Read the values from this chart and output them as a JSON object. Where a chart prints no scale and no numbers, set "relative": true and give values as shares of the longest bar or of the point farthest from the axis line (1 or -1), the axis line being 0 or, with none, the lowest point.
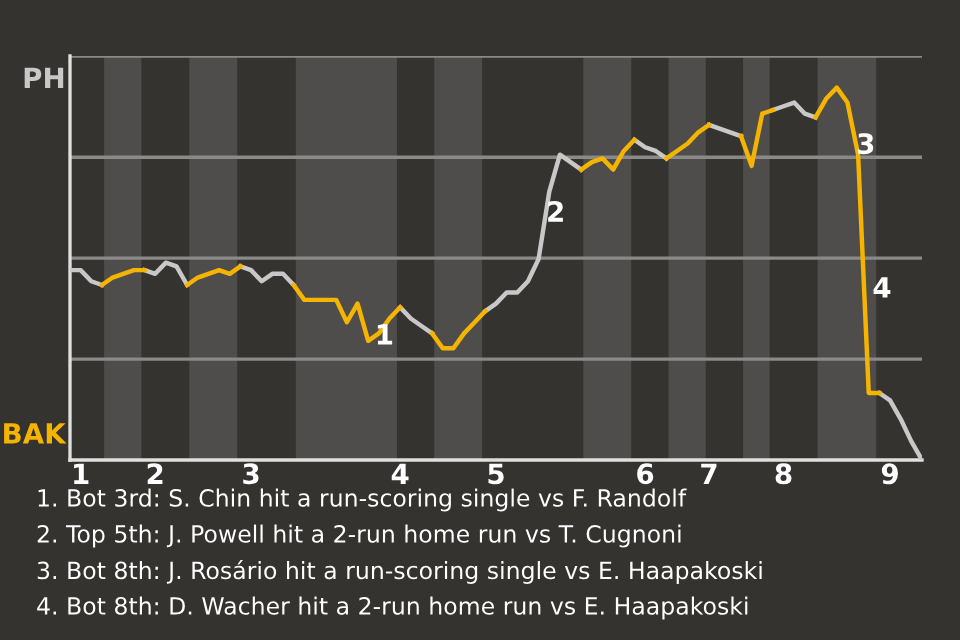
{
  "chart_data": {
    "type": "line",
    "relative": true,
    "categories": [
      null,
      "1",
      null,
      null,
      null,
      null,
      null,
      null,
      "2",
      null,
      null,
      null,
      null,
      null,
      null,
      null,
      null,
      "3",
      null,
      null,
      null,
      null,
      null,
      null,
      null,
      null,
      null,
      null,
      null,
      null,
      null,
      "4",
      null,
      null,
      null,
      null,
      null,
      null,
      null,
      null,
      "5",
      null,
      null,
      null,
      null,
      null,
      null,
      null,
      null,
      null,
      null,
      null,
      null,
      null,
      "6",
      null,
      null,
      null,
      null,
      null,
      "7",
      null,
      null,
      null,
      null,
      null,
      null,
      "8",
      null,
      null,
      null,
      null,
      null,
      null,
      null,
      null,
      null,
      "9",
      null,
      null,
      null
    ],
    "legend": false,
    "marker": "none",
    "line_style": "solid",
    "ref_lines": [
      {
        "axis": "y",
        "value": 0.271,
        "label": null,
        "color": "#8a8a88"
      },
      {
        "axis": "y",
        "value": 0.542,
        "label": null,
        "color": "#8a8a88"
      },
      {
        "axis": "y",
        "value": 0.813,
        "label": null,
        "color": "#8a8a88"
      },
      {
        "axis": "y",
        "value": 1.085,
        "label": null,
        "color": "#8a8a88"
      }
    ],
    "series": [
      {
        "color": "#c8c8c8",
        "values": [
          0.51,
          0.51,
          0.48,
          0.47,
          null,
          null,
          null,
          0.51,
          0.5,
          0.53,
          0.52,
          0.47,
          null,
          null,
          null,
          null,
          0.52,
          0.51,
          0.48,
          0.5,
          0.5,
          0.47,
          null,
          null,
          null,
          null,
          null,
          null,
          null,
          null,
          null,
          0.41,
          0.38,
          0.36,
          0.34,
          null,
          null,
          null,
          null,
          0.4,
          0.42,
          0.45,
          0.45,
          0.48,
          0.54,
          0.72,
          0.82,
          0.8,
          0.78,
          null,
          null,
          null,
          null,
          0.86,
          0.84,
          0.83,
          0.81,
          null,
          null,
          null,
          0.9,
          0.89,
          0.88,
          0.87,
          null,
          null,
          0.94,
          0.95,
          0.96,
          0.93,
          0.92,
          null,
          null,
          null,
          null,
          null,
          0.18,
          0.16,
          0.11,
          0.05,
          0
        ]
      },
      {
        "color": "#f5b400",
        "values": [
          null,
          null,
          null,
          0.47,
          0.49,
          0.5,
          0.51,
          0.51,
          null,
          null,
          null,
          0.47,
          0.49,
          0.5,
          0.51,
          0.5,
          0.52,
          null,
          null,
          null,
          null,
          0.47,
          0.43,
          0.43,
          0.43,
          0.43,
          0.37,
          0.42,
          0.32,
          0.34,
          0.38,
          0.41,
          null,
          null,
          0.34,
          0.3,
          0.3,
          0.34,
          0.37,
          0.4,
          null,
          null,
          null,
          null,
          null,
          null,
          null,
          null,
          0.78,
          0.8,
          0.81,
          0.78,
          0.83,
          0.86,
          null,
          null,
          0.81,
          0.83,
          0.85,
          0.88,
          0.9,
          null,
          null,
          0.87,
          0.79,
          0.93,
          0.94,
          null,
          null,
          null,
          0.92,
          0.97,
          1,
          0.96,
          0.82,
          0.18,
          0.18,
          null,
          null,
          null,
          null
        ]
      }
    ],
    "annotations": [
      "PH",
      "BAK",
      "1",
      "2",
      "3",
      "4",
      "1. Bot 3rd: S. Chin hit a run-scoring single vs F. Randolf",
      "2. Top 5th: J. Powell hit a 2-run home run vs T. Cugnoni",
      "3. Bot 8th: J. Rosário hit a run-scoring single vs E. Haapakoski",
      "4. Bot 8th: D. Wacher hit a 2-run home run vs E. Haapakoski"
    ]
  }
}
